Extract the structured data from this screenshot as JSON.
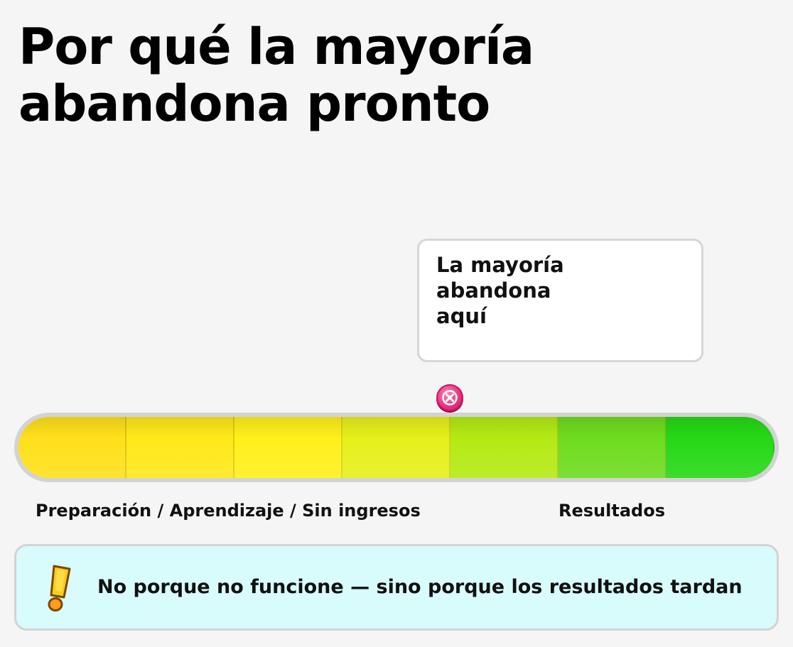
{
  "title": {
    "line1": "Por qué la mayoría",
    "line2": "abandona pronto"
  },
  "callout": {
    "line1": "La mayoría abandona",
    "line2": "aquí"
  },
  "marker": {
    "icon": "x-circle-icon",
    "color": "#ec2f7c"
  },
  "progress_bar": {
    "segment_count": 7,
    "segment_colors": [
      "#ffe01a",
      "#ffe81a",
      "#fff01a",
      "#e6f01a",
      "#b4ea14",
      "#6edc1e",
      "#26d816"
    ],
    "marker_position_fraction": 0.57
  },
  "labels": {
    "left": "Preparación / Aprendizaje / Sin ingresos",
    "right": "Resultados"
  },
  "note": {
    "icon": "exclamation-icon",
    "text": "No porque no funcione — sino porque los resultados tardan"
  }
}
